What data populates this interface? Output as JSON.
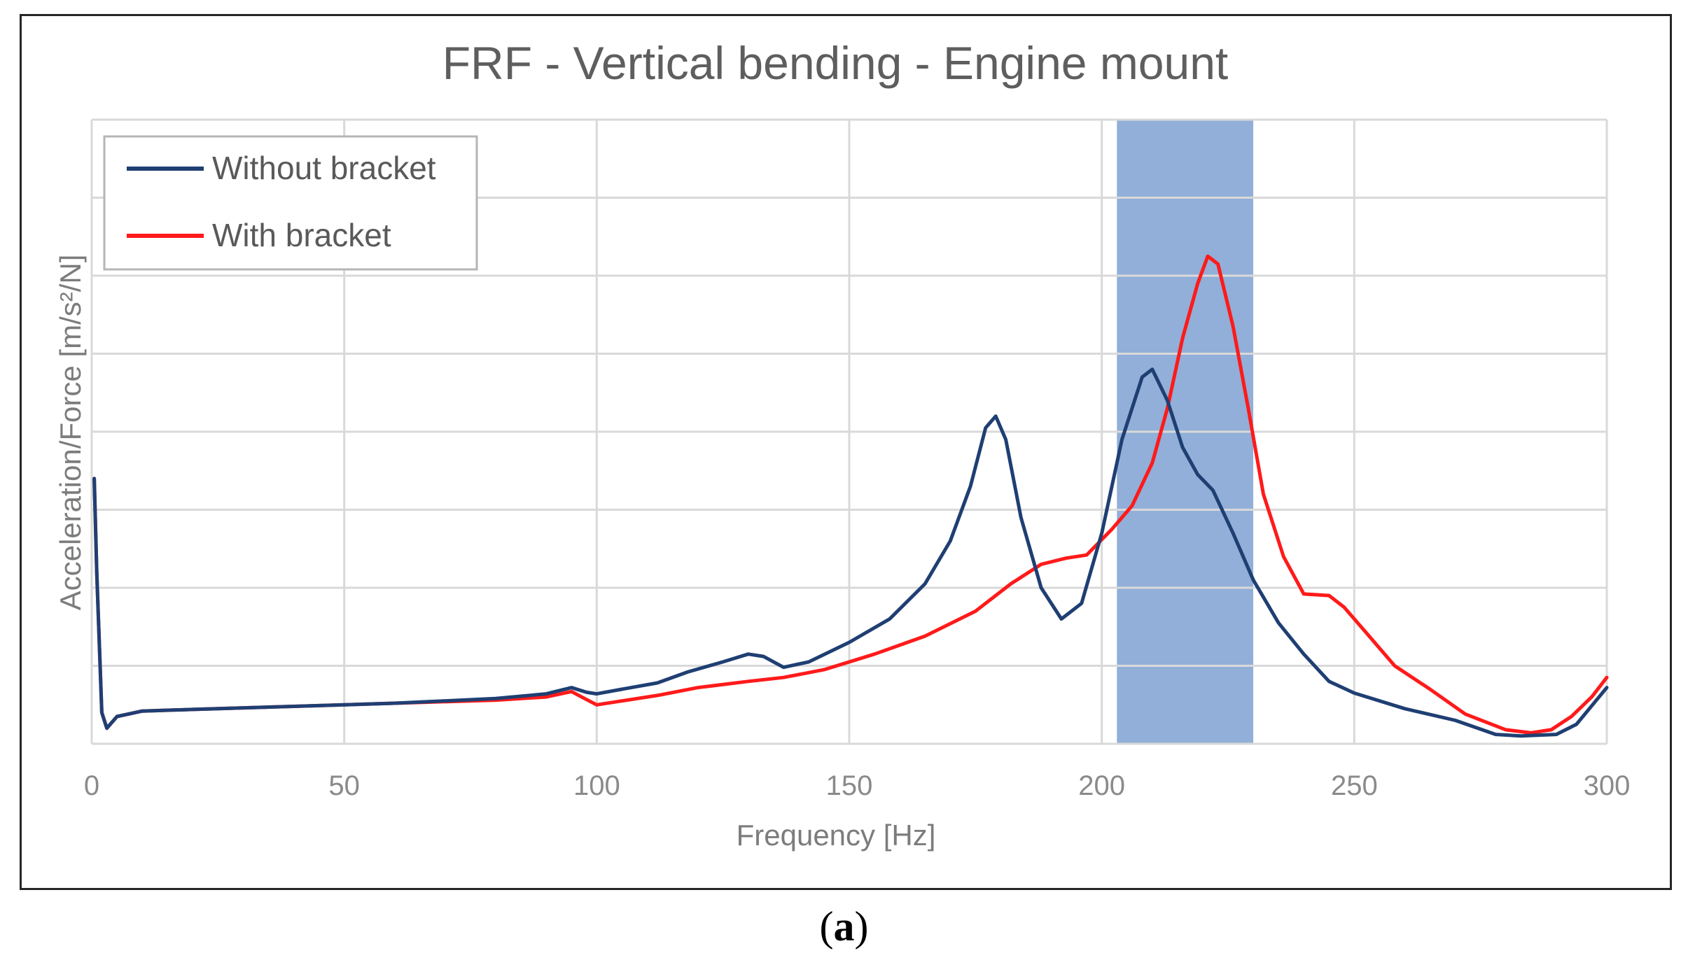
{
  "chart_data": {
    "type": "line",
    "title": "FRF - Vertical bending - Engine mount",
    "xlabel": "Frequency [Hz]",
    "ylabel": "Acceleration/Force [m/s²/N]",
    "xlim": [
      0,
      300
    ],
    "ylim": [
      0,
      8
    ],
    "x_ticks": [
      "0",
      "50",
      "100",
      "150",
      "200",
      "250",
      "300"
    ],
    "y_ticks_labeled": false,
    "grid": true,
    "legend_position": "top-left",
    "highlight_band": {
      "x": [
        203,
        230
      ],
      "color": "#7ea1d1"
    },
    "series": [
      {
        "name": "Without bracket",
        "color": "#1f3f73",
        "points": [
          [
            0.5,
            3.4
          ],
          [
            1,
            2.2
          ],
          [
            2,
            0.4
          ],
          [
            3,
            0.2
          ],
          [
            5,
            0.35
          ],
          [
            10,
            0.42
          ],
          [
            20,
            0.44
          ],
          [
            40,
            0.48
          ],
          [
            60,
            0.52
          ],
          [
            80,
            0.58
          ],
          [
            90,
            0.64
          ],
          [
            95,
            0.72
          ],
          [
            98,
            0.66
          ],
          [
            100,
            0.64
          ],
          [
            105,
            0.7
          ],
          [
            112,
            0.78
          ],
          [
            118,
            0.92
          ],
          [
            125,
            1.05
          ],
          [
            130,
            1.15
          ],
          [
            133,
            1.12
          ],
          [
            137,
            0.98
          ],
          [
            142,
            1.05
          ],
          [
            150,
            1.3
          ],
          [
            158,
            1.6
          ],
          [
            165,
            2.05
          ],
          [
            170,
            2.6
          ],
          [
            174,
            3.3
          ],
          [
            177,
            4.05
          ],
          [
            179,
            4.2
          ],
          [
            181,
            3.9
          ],
          [
            184,
            2.9
          ],
          [
            188,
            2.0
          ],
          [
            192,
            1.6
          ],
          [
            196,
            1.8
          ],
          [
            200,
            2.7
          ],
          [
            204,
            3.9
          ],
          [
            208,
            4.7
          ],
          [
            210,
            4.8
          ],
          [
            213,
            4.4
          ],
          [
            216,
            3.8
          ],
          [
            219,
            3.45
          ],
          [
            222,
            3.25
          ],
          [
            226,
            2.7
          ],
          [
            230,
            2.1
          ],
          [
            235,
            1.55
          ],
          [
            240,
            1.15
          ],
          [
            245,
            0.8
          ],
          [
            250,
            0.65
          ],
          [
            260,
            0.45
          ],
          [
            270,
            0.3
          ],
          [
            278,
            0.12
          ],
          [
            283,
            0.1
          ],
          [
            290,
            0.12
          ],
          [
            294,
            0.25
          ],
          [
            300,
            0.72
          ]
        ]
      },
      {
        "name": "With bracket",
        "color": "#ff1a1a",
        "points": [
          [
            0.5,
            3.4
          ],
          [
            1,
            2.2
          ],
          [
            2,
            0.4
          ],
          [
            3,
            0.2
          ],
          [
            5,
            0.35
          ],
          [
            10,
            0.42
          ],
          [
            20,
            0.44
          ],
          [
            40,
            0.48
          ],
          [
            60,
            0.52
          ],
          [
            80,
            0.56
          ],
          [
            90,
            0.6
          ],
          [
            95,
            0.67
          ],
          [
            97,
            0.6
          ],
          [
            100,
            0.5
          ],
          [
            105,
            0.55
          ],
          [
            112,
            0.62
          ],
          [
            120,
            0.72
          ],
          [
            130,
            0.8
          ],
          [
            137,
            0.85
          ],
          [
            145,
            0.95
          ],
          [
            155,
            1.15
          ],
          [
            165,
            1.38
          ],
          [
            175,
            1.7
          ],
          [
            182,
            2.05
          ],
          [
            188,
            2.3
          ],
          [
            193,
            2.38
          ],
          [
            197,
            2.42
          ],
          [
            202,
            2.75
          ],
          [
            206,
            3.05
          ],
          [
            210,
            3.6
          ],
          [
            213,
            4.3
          ],
          [
            216,
            5.2
          ],
          [
            219,
            5.9
          ],
          [
            221,
            6.25
          ],
          [
            223,
            6.15
          ],
          [
            226,
            5.35
          ],
          [
            229,
            4.3
          ],
          [
            232,
            3.2
          ],
          [
            236,
            2.4
          ],
          [
            240,
            1.92
          ],
          [
            245,
            1.9
          ],
          [
            248,
            1.75
          ],
          [
            252,
            1.45
          ],
          [
            258,
            1.0
          ],
          [
            265,
            0.7
          ],
          [
            272,
            0.38
          ],
          [
            280,
            0.18
          ],
          [
            285,
            0.14
          ],
          [
            289,
            0.18
          ],
          [
            293,
            0.35
          ],
          [
            297,
            0.6
          ],
          [
            300,
            0.85
          ]
        ]
      }
    ]
  },
  "caption": {
    "open": "(",
    "letter": "a",
    "close": ")"
  }
}
